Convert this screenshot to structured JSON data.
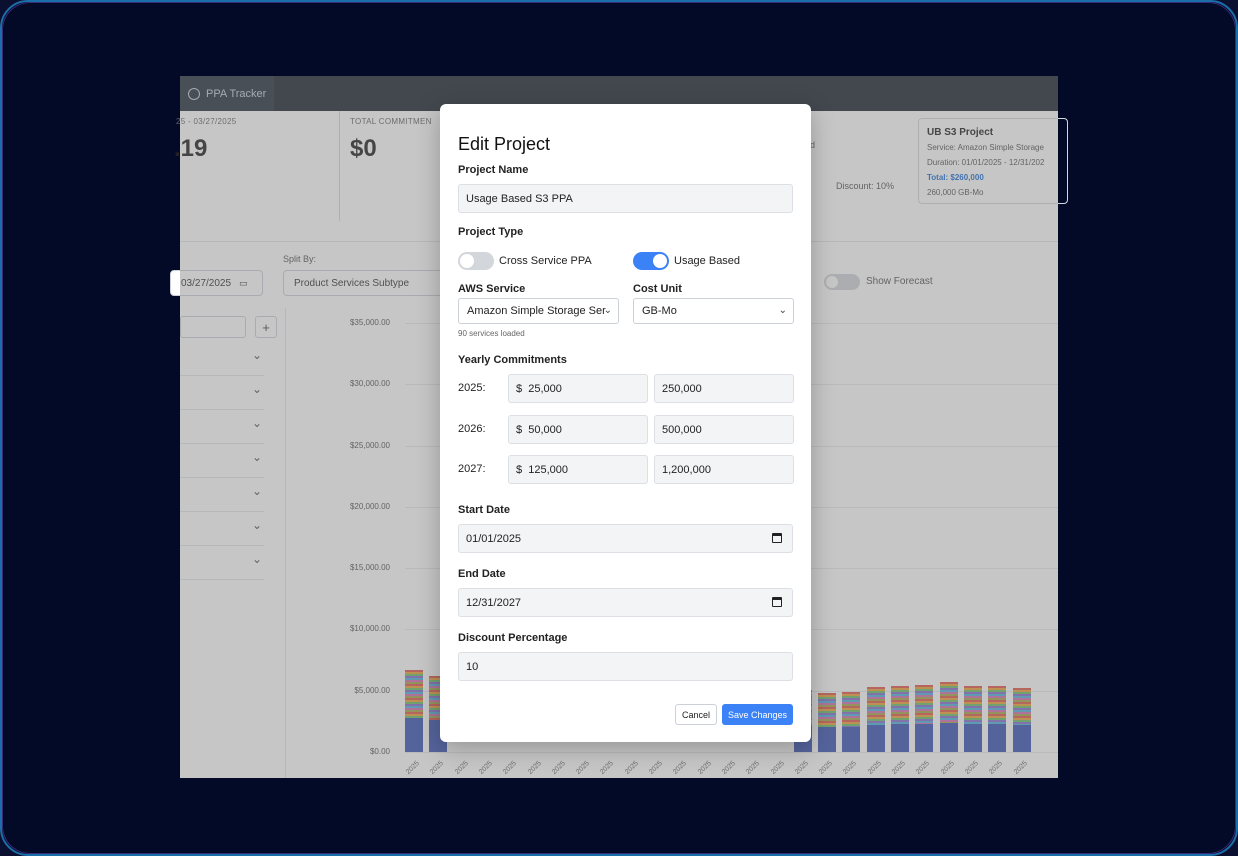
{
  "app": {
    "tab_label": "PPA Tracker"
  },
  "stats": {
    "date_range": "25 - 03/27/2025",
    "amount_left": ".19",
    "total_commitment_label": "TOTAL COMMITMEN",
    "total_commitment_value": "$0",
    "partial_text": "d",
    "discount_text": "Discount: 10%"
  },
  "project_card": {
    "title": "UB S3 Project",
    "service": "Service: Amazon Simple Storage",
    "duration": "Duration: 01/01/2025 - 12/31/202",
    "total": "Total: $260,000",
    "units": "260,000 GB-Mo"
  },
  "controls": {
    "split_by_label": "Split By:",
    "date_value": "03/27/2025",
    "split_by_value": "Product Services Subtype",
    "show_forecast_label": "Show Forecast"
  },
  "chart_data": {
    "type": "bar",
    "yticks": [
      "$35,000.00",
      "$30,000.00",
      "$25,000.00",
      "$20,000.00",
      "$15,000.00",
      "$10,000.00",
      "$5,000.00",
      "$0.00"
    ],
    "ylim": [
      0,
      35000
    ],
    "x_tick_label": "2025",
    "values": [
      6700,
      6200,
      0,
      0,
      0,
      0,
      0,
      0,
      0,
      0,
      0,
      0,
      0,
      0,
      0,
      0,
      5100,
      4800,
      4900,
      5300,
      5400,
      5500,
      5700,
      5400,
      5400,
      5200
    ]
  },
  "modal": {
    "title": "Edit Project",
    "project_name_label": "Project Name",
    "project_name_value": "Usage Based S3 PPA",
    "project_type_label": "Project Type",
    "type_cross": "Cross Service PPA",
    "type_usage": "Usage Based",
    "aws_service_label": "AWS Service",
    "aws_service_value": "Amazon Simple Storage Ser",
    "cost_unit_label": "Cost Unit",
    "cost_unit_value": "GB-Mo",
    "services_hint": "90 services loaded",
    "yearly_label": "Yearly Commitments",
    "years": [
      {
        "year": "2025:",
        "amount": "$  25,000",
        "units": "250,000"
      },
      {
        "year": "2026:",
        "amount": "$  50,000",
        "units": "500,000"
      },
      {
        "year": "2027:",
        "amount": "$  125,000",
        "units": "1,200,000"
      }
    ],
    "start_date_label": "Start Date",
    "start_date_value": "01/01/2025",
    "end_date_label": "End Date",
    "end_date_value": "12/31/2027",
    "discount_label": "Discount Percentage",
    "discount_value": "10",
    "cancel_label": "Cancel",
    "save_label": "Save Changes"
  }
}
